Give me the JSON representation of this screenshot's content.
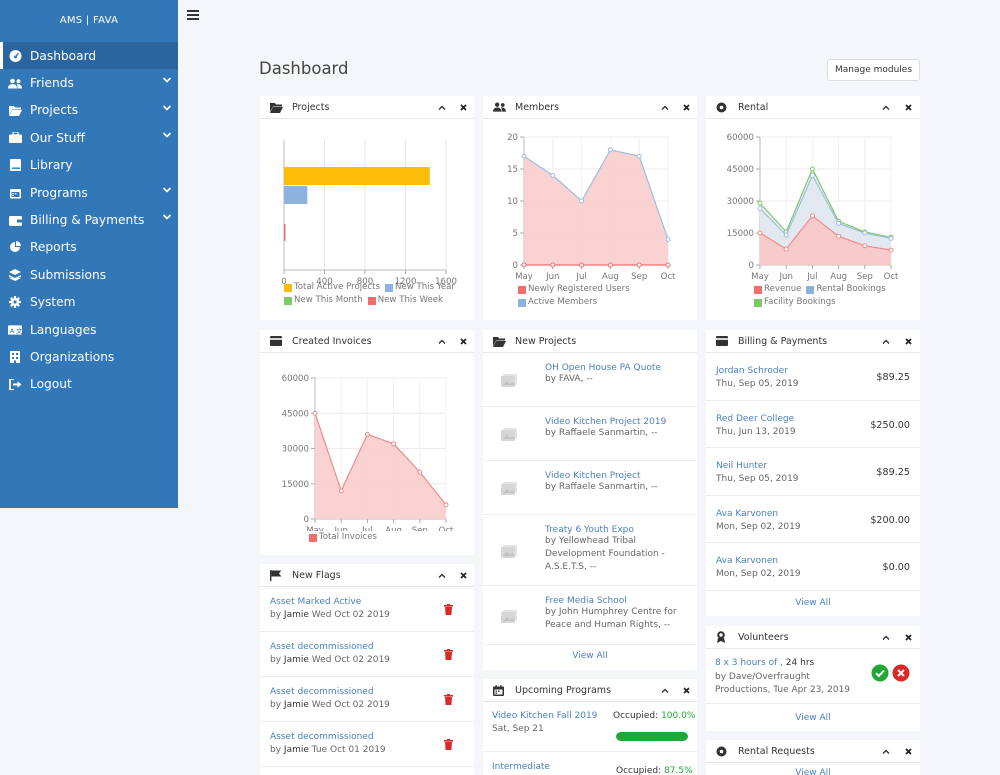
{
  "brand": "AMS | FAVA",
  "nav": [
    {
      "label": "Dashboard",
      "icon": "dashboard-icon",
      "active": true,
      "chevron": false
    },
    {
      "label": "Friends",
      "icon": "users-icon",
      "chevron": true
    },
    {
      "label": "Projects",
      "icon": "folder-icon",
      "chevron": true
    },
    {
      "label": "Our Stuff",
      "icon": "briefcase-icon",
      "chevron": true
    },
    {
      "label": "Library",
      "icon": "book-icon",
      "chevron": false
    },
    {
      "label": "Programs",
      "icon": "calendar-icon",
      "chevron": true
    },
    {
      "label": "Billing & Payments",
      "icon": "wallet-icon",
      "chevron": true
    },
    {
      "label": "Reports",
      "icon": "pie-chart-icon",
      "chevron": false
    },
    {
      "label": "Submissions",
      "icon": "layers-icon",
      "chevron": false
    },
    {
      "label": "System",
      "icon": "gear-icon",
      "chevron": false
    },
    {
      "label": "Languages",
      "icon": "language-icon",
      "chevron": false
    },
    {
      "label": "Organizations",
      "icon": "building-icon",
      "chevron": false
    },
    {
      "label": "Logout",
      "icon": "logout-icon",
      "chevron": false
    }
  ],
  "page_title": "Dashboard",
  "manage_modules": "Manage modules",
  "cards": {
    "projects": "Projects",
    "members": "Members",
    "rental": "Rental",
    "invoices": "Created Invoices",
    "new_projects": "New Projects",
    "billing": "Billing & Payments",
    "flags": "New Flags",
    "upcoming": "Upcoming Programs",
    "volunteers": "Volunteers",
    "rental_requests": "Rental Requests"
  },
  "colors": {
    "orange": "#fbbd08",
    "blue": "#8db2dd",
    "green": "#7cc96a",
    "red": "#f26d6d",
    "link": "#4a7fc1"
  },
  "chart_data": [
    {
      "type": "bar",
      "orientation": "horizontal",
      "series": [
        {
          "name": "Total Active Projects",
          "values": [
            1440
          ]
        },
        {
          "name": "New This Year",
          "values": [
            230
          ]
        },
        {
          "name": "New This Month",
          "values": [
            0
          ]
        },
        {
          "name": "New This Week",
          "values": [
            8
          ]
        }
      ],
      "xlim": [
        0,
        1600
      ],
      "xticks": [
        "0",
        "400",
        "800",
        "1200",
        "1600"
      ]
    },
    {
      "type": "area",
      "categories": [
        "May",
        "Jun",
        "Jul",
        "Aug",
        "Sep",
        "Oct"
      ],
      "series": [
        {
          "name": "Newly Registered Users",
          "values": [
            0,
            0,
            0,
            0,
            0,
            0
          ]
        },
        {
          "name": "Active Members",
          "values": [
            17,
            14,
            10,
            18,
            17,
            4
          ]
        }
      ],
      "ylim": [
        0,
        20
      ],
      "yticks": [
        "0",
        "5",
        "10",
        "15",
        "20"
      ]
    },
    {
      "type": "area",
      "categories": [
        "May",
        "Jun",
        "Jul",
        "Aug",
        "Sep",
        "Oct"
      ],
      "series": [
        {
          "name": "Revenue",
          "values": [
            15000,
            7500,
            23000,
            13500,
            9000,
            7000
          ]
        },
        {
          "name": "Rental Bookings",
          "values": [
            26500,
            14000,
            42000,
            19500,
            15000,
            12500
          ]
        },
        {
          "name": "Facility Bookings",
          "values": [
            29000,
            15500,
            45000,
            20500,
            15500,
            13000
          ]
        }
      ],
      "ylim": [
        0,
        60000
      ],
      "yticks": [
        "0",
        "15000",
        "30000",
        "45000",
        "60000"
      ]
    },
    {
      "type": "area",
      "categories": [
        "May",
        "Jun",
        "Jul",
        "Aug",
        "Sep",
        "Oct"
      ],
      "series": [
        {
          "name": "Total Invoices",
          "values": [
            45000,
            12000,
            36000,
            32000,
            20000,
            6000
          ]
        }
      ],
      "ylim": [
        0,
        60000
      ],
      "yticks": [
        "0",
        "15000",
        "30000",
        "45000",
        "60000"
      ]
    }
  ],
  "new_projects": [
    {
      "title": "OH Open House PA Quote",
      "by": "by FAVA, --"
    },
    {
      "title": "Video Kitchen Project 2019",
      "by": "by Raffaele Sanmartin, --"
    },
    {
      "title": "Video Kitchen Project",
      "by": "by Raffaele Sanmartin, --"
    },
    {
      "title": "Treaty 6 Youth Expo",
      "by": "by Yellowhead Tribal Development Foundation - A.S.E.T.S, --"
    },
    {
      "title": "Free Media School",
      "by": "by John Humphrey Centre for Peace and Human Rights, --"
    }
  ],
  "view_all": "View All",
  "billing": [
    {
      "name": "Jordan Schroder",
      "date": "Thu, Sep 05, 2019",
      "amount": "$89.25"
    },
    {
      "name": "Red Deer College",
      "date": "Thu, Jun 13, 2019",
      "amount": "$250.00"
    },
    {
      "name": "Neil Hunter",
      "date": "Thu, Sep 05, 2019",
      "amount": "$89.25"
    },
    {
      "name": "Ava Karvonen",
      "date": "Mon, Sep 02, 2019",
      "amount": "$200.00"
    },
    {
      "name": "Ava Karvonen",
      "date": "Mon, Sep 02, 2019",
      "amount": "$0.00"
    }
  ],
  "flags": [
    {
      "name": "Asset Marked Active",
      "user": "Jamie",
      "date": "Wed Oct 02 2019"
    },
    {
      "name": "Asset decommissioned",
      "user": "Jamie",
      "date": "Wed Oct 02 2019"
    },
    {
      "name": "Asset decommissioned",
      "user": "Jamie",
      "date": "Wed Oct 02 2019"
    },
    {
      "name": "Asset decommissioned",
      "user": "Jamie",
      "date": "Tue Oct 01 2019"
    }
  ],
  "flag_by": "by",
  "upcoming": [
    {
      "title": "Video Kitchen Fall 2019",
      "date": "Sat, Sep 21",
      "occ_label": "Occupied:",
      "occ": "100.0%",
      "progress": 1.0
    },
    {
      "title": "Intermediate",
      "occ_label": "Occupied:",
      "occ": "87.5%"
    }
  ],
  "volunteers": {
    "hours": "8 x 3 hours of ,",
    "total": "24 hrs",
    "by": "by Dave/Overfraught Productions, Tue Apr 23, 2019"
  }
}
